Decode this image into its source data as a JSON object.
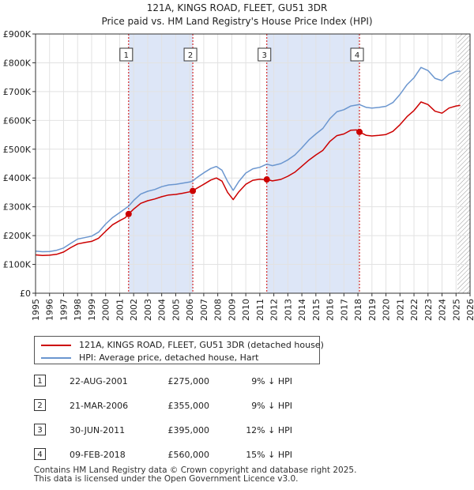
{
  "chart_data": {
    "type": "line",
    "title": "121A, KINGS ROAD, FLEET, GU51 3DR",
    "subtitle": "Price paid vs. HM Land Registry's House Price Index (HPI)",
    "xlim": [
      1995,
      2026
    ],
    "ylim": [
      0,
      900000
    ],
    "x_ticks": [
      1995,
      1996,
      1997,
      1998,
      1999,
      2000,
      2001,
      2002,
      2003,
      2004,
      2005,
      2006,
      2007,
      2008,
      2009,
      2010,
      2011,
      2012,
      2013,
      2014,
      2015,
      2016,
      2017,
      2018,
      2019,
      2020,
      2021,
      2022,
      2023,
      2024,
      2025,
      2026
    ],
    "y_ticks": [
      0,
      100000,
      200000,
      300000,
      400000,
      500000,
      600000,
      700000,
      800000,
      900000
    ],
    "y_tick_labels": [
      "£0",
      "£100K",
      "£200K",
      "£300K",
      "£400K",
      "£500K",
      "£600K",
      "£700K",
      "£800K",
      "£900K"
    ],
    "grid": true,
    "forecast_hatch_from": 2025.1,
    "colors": {
      "property": "#cc0000",
      "hpi": "#6b96cf",
      "shade": "#dde6f7",
      "marker": "#cc0000"
    },
    "series": [
      {
        "name": "121A, KINGS ROAD, FLEET, GU51 3DR (detached house)",
        "key": "property",
        "points": [
          [
            1995.0,
            133000
          ],
          [
            1995.5,
            131000
          ],
          [
            1996.0,
            132000
          ],
          [
            1996.5,
            135000
          ],
          [
            1997.0,
            143000
          ],
          [
            1997.5,
            158000
          ],
          [
            1998.0,
            171000
          ],
          [
            1998.5,
            176000
          ],
          [
            1999.0,
            180000
          ],
          [
            1999.5,
            191000
          ],
          [
            2000.0,
            215000
          ],
          [
            2000.5,
            238000
          ],
          [
            2001.0,
            252000
          ],
          [
            2001.4,
            262000
          ],
          [
            2001.64,
            275000
          ],
          [
            2002.0,
            292000
          ],
          [
            2002.5,
            312000
          ],
          [
            2003.0,
            321000
          ],
          [
            2003.5,
            327000
          ],
          [
            2004.0,
            335000
          ],
          [
            2004.5,
            341000
          ],
          [
            2005.0,
            343000
          ],
          [
            2005.5,
            347000
          ],
          [
            2006.0,
            352000
          ],
          [
            2006.22,
            355000
          ],
          [
            2006.5,
            364000
          ],
          [
            2007.0,
            378000
          ],
          [
            2007.5,
            393000
          ],
          [
            2007.9,
            400000
          ],
          [
            2008.3,
            389000
          ],
          [
            2008.7,
            350000
          ],
          [
            2009.1,
            325000
          ],
          [
            2009.5,
            352000
          ],
          [
            2010.0,
            378000
          ],
          [
            2010.5,
            392000
          ],
          [
            2011.0,
            396000
          ],
          [
            2011.3,
            394000
          ],
          [
            2011.5,
            395000
          ],
          [
            2011.9,
            390000
          ],
          [
            2012.5,
            395000
          ],
          [
            2013.0,
            406000
          ],
          [
            2013.5,
            420000
          ],
          [
            2014.0,
            441000
          ],
          [
            2014.5,
            462000
          ],
          [
            2015.0,
            480000
          ],
          [
            2015.5,
            496000
          ],
          [
            2016.0,
            527000
          ],
          [
            2016.5,
            547000
          ],
          [
            2017.0,
            553000
          ],
          [
            2017.5,
            566000
          ],
          [
            2017.9,
            567000
          ],
          [
            2018.11,
            560000
          ],
          [
            2018.6,
            548000
          ],
          [
            2019.0,
            546000
          ],
          [
            2019.5,
            548000
          ],
          [
            2020.0,
            551000
          ],
          [
            2020.5,
            562000
          ],
          [
            2021.0,
            585000
          ],
          [
            2021.5,
            613000
          ],
          [
            2022.0,
            634000
          ],
          [
            2022.5,
            664000
          ],
          [
            2023.0,
            655000
          ],
          [
            2023.5,
            632000
          ],
          [
            2024.0,
            625000
          ],
          [
            2024.5,
            643000
          ],
          [
            2025.0,
            650000
          ],
          [
            2025.3,
            652000
          ]
        ]
      },
      {
        "name": "HPI: Average price, detached house, Hart",
        "key": "hpi",
        "points": [
          [
            1995.0,
            146000
          ],
          [
            1995.5,
            144000
          ],
          [
            1996.0,
            145000
          ],
          [
            1996.5,
            149000
          ],
          [
            1997.0,
            157000
          ],
          [
            1997.5,
            173000
          ],
          [
            1998.0,
            188000
          ],
          [
            1998.5,
            193000
          ],
          [
            1999.0,
            198000
          ],
          [
            1999.5,
            212000
          ],
          [
            2000.0,
            240000
          ],
          [
            2000.5,
            263000
          ],
          [
            2001.0,
            280000
          ],
          [
            2001.64,
            302000
          ],
          [
            2002.0,
            322000
          ],
          [
            2002.5,
            344000
          ],
          [
            2003.0,
            354000
          ],
          [
            2003.5,
            360000
          ],
          [
            2004.0,
            370000
          ],
          [
            2004.5,
            376000
          ],
          [
            2005.0,
            378000
          ],
          [
            2005.5,
            382000
          ],
          [
            2006.0,
            386000
          ],
          [
            2006.22,
            390000
          ],
          [
            2006.5,
            401000
          ],
          [
            2007.0,
            418000
          ],
          [
            2007.5,
            433000
          ],
          [
            2007.9,
            440000
          ],
          [
            2008.3,
            427000
          ],
          [
            2008.7,
            388000
          ],
          [
            2009.1,
            357000
          ],
          [
            2009.5,
            388000
          ],
          [
            2010.0,
            417000
          ],
          [
            2010.5,
            432000
          ],
          [
            2011.0,
            437000
          ],
          [
            2011.5,
            448000
          ],
          [
            2011.9,
            443000
          ],
          [
            2012.5,
            450000
          ],
          [
            2013.0,
            463000
          ],
          [
            2013.5,
            480000
          ],
          [
            2014.0,
            505000
          ],
          [
            2014.5,
            532000
          ],
          [
            2015.0,
            553000
          ],
          [
            2015.5,
            572000
          ],
          [
            2016.0,
            606000
          ],
          [
            2016.5,
            630000
          ],
          [
            2017.0,
            637000
          ],
          [
            2017.5,
            650000
          ],
          [
            2018.11,
            655000
          ],
          [
            2018.6,
            645000
          ],
          [
            2019.0,
            643000
          ],
          [
            2019.5,
            645000
          ],
          [
            2020.0,
            649000
          ],
          [
            2020.5,
            662000
          ],
          [
            2021.0,
            690000
          ],
          [
            2021.5,
            724000
          ],
          [
            2022.0,
            748000
          ],
          [
            2022.5,
            784000
          ],
          [
            2023.0,
            773000
          ],
          [
            2023.5,
            746000
          ],
          [
            2024.0,
            738000
          ],
          [
            2024.5,
            760000
          ],
          [
            2025.0,
            770000
          ],
          [
            2025.3,
            771000
          ]
        ]
      }
    ],
    "sales": [
      {
        "id": "1",
        "x": 2001.64,
        "y": 275000
      },
      {
        "id": "2",
        "x": 2006.22,
        "y": 355000
      },
      {
        "id": "3",
        "x": 2011.5,
        "y": 395000
      },
      {
        "id": "4",
        "x": 2018.11,
        "y": 560000
      }
    ],
    "shaded_periods": [
      [
        2001.64,
        2006.22
      ],
      [
        2011.5,
        2018.11
      ]
    ]
  },
  "legend": {
    "property_label": "121A, KINGS ROAD, FLEET, GU51 3DR (detached house)",
    "hpi_label": "HPI: Average price, detached house, Hart"
  },
  "sales_table": [
    {
      "id": "1",
      "date": "22-AUG-2001",
      "price": "£275,000",
      "diff": "9% ↓ HPI"
    },
    {
      "id": "2",
      "date": "21-MAR-2006",
      "price": "£355,000",
      "diff": "9% ↓ HPI"
    },
    {
      "id": "3",
      "date": "30-JUN-2011",
      "price": "£395,000",
      "diff": "12% ↓ HPI"
    },
    {
      "id": "4",
      "date": "09-FEB-2018",
      "price": "£560,000",
      "diff": "15% ↓ HPI"
    }
  ],
  "footer": {
    "line1": "Contains HM Land Registry data © Crown copyright and database right 2025.",
    "line2": "This data is licensed under the Open Government Licence v3.0."
  }
}
